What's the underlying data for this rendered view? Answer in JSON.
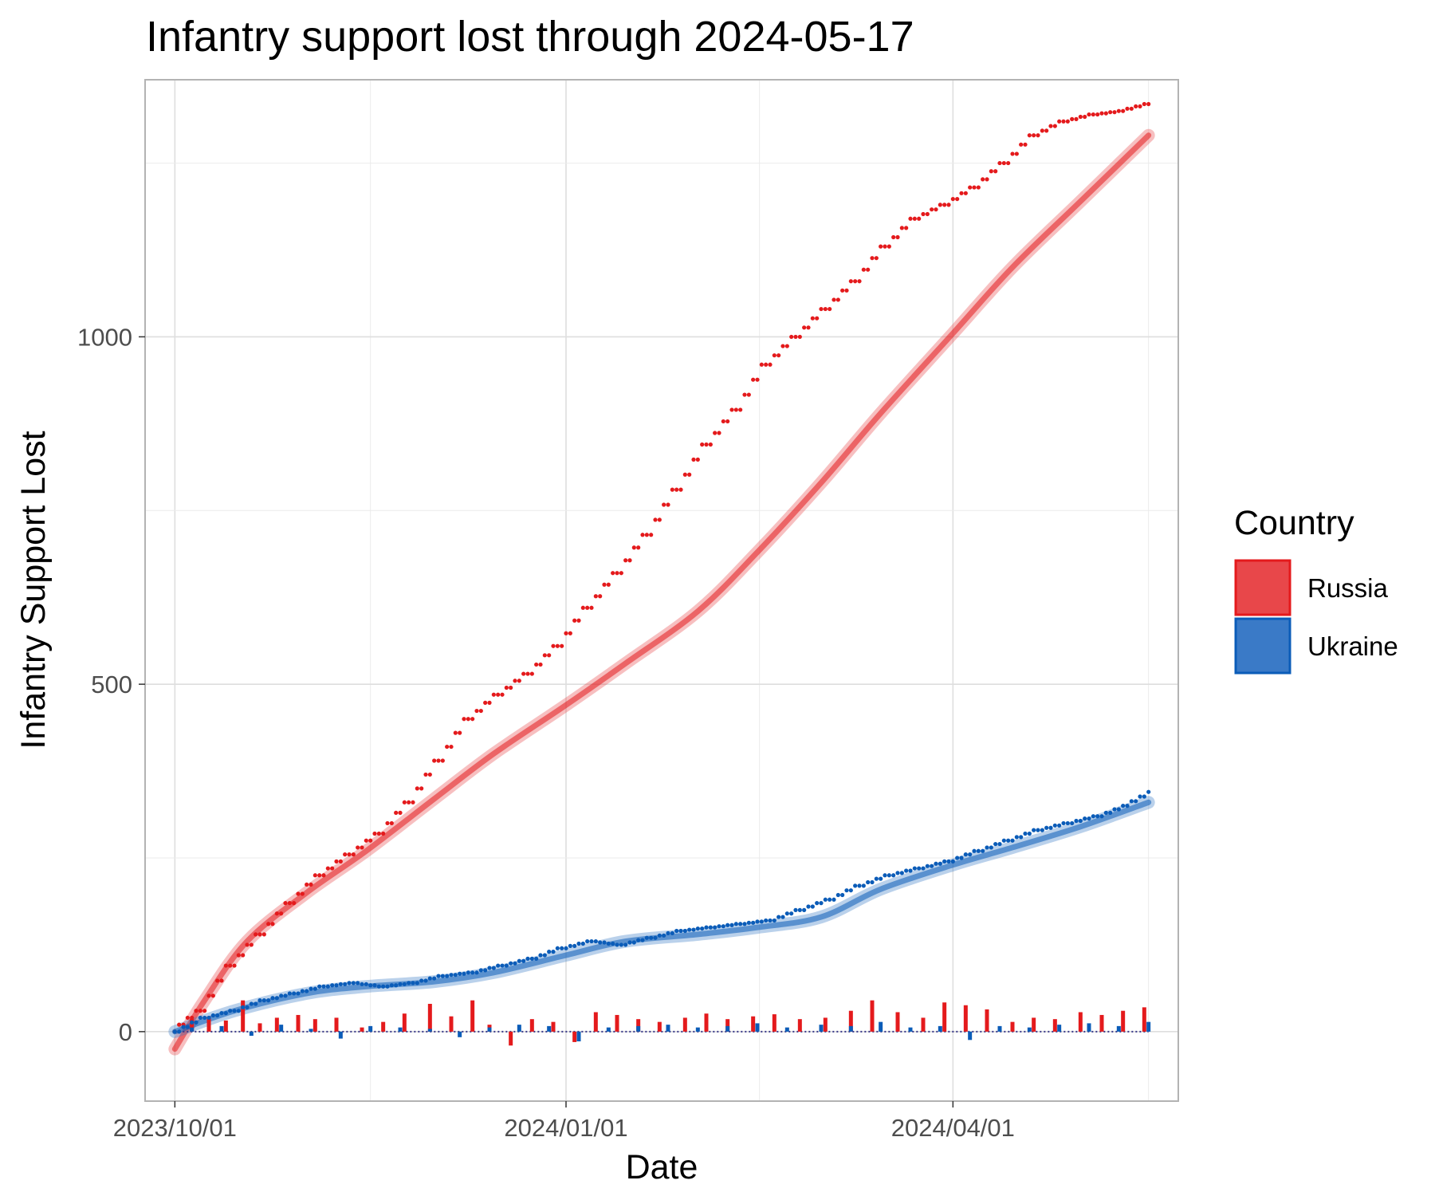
{
  "chart_data": {
    "type": "line",
    "title": "Infantry support lost through 2024-05-17",
    "xlabel": "Date",
    "ylabel": "Infantry Support Lost",
    "x_ticks": [
      "2023/10/01",
      "2024/01/01",
      "2024/04/01"
    ],
    "y_ticks": [
      0,
      500,
      1000
    ],
    "xlim": [
      "2023-09-24",
      "2024-05-24"
    ],
    "ylim": [
      -100,
      1370
    ],
    "grid": true,
    "legend": {
      "title": "Country",
      "placement": "right"
    },
    "colors": {
      "Russia": "#e41a1c",
      "Ukraine": "#0b5cb8",
      "Russia_fill": "#e8474a",
      "Ukraine_fill": "#3a7ac7"
    },
    "series": [
      {
        "name": "Russia",
        "type": "cumulative_points",
        "x": [
          "2023-10-01",
          "2023-10-07",
          "2023-10-14",
          "2023-10-21",
          "2023-10-28",
          "2023-11-04",
          "2023-11-11",
          "2023-11-18",
          "2023-11-25",
          "2023-12-02",
          "2023-12-09",
          "2023-12-16",
          "2023-12-23",
          "2023-12-30",
          "2024-01-06",
          "2024-01-13",
          "2024-01-20",
          "2024-01-27",
          "2024-02-03",
          "2024-02-10",
          "2024-02-17",
          "2024-02-24",
          "2024-03-02",
          "2024-03-09",
          "2024-03-16",
          "2024-03-23",
          "2024-03-30",
          "2024-04-06",
          "2024-04-13",
          "2024-04-20",
          "2024-04-27",
          "2024-05-04",
          "2024-05-11",
          "2024-05-17"
        ],
        "values": [
          0,
          30,
          95,
          140,
          185,
          225,
          255,
          285,
          330,
          390,
          450,
          485,
          515,
          555,
          610,
          660,
          715,
          780,
          845,
          895,
          960,
          1000,
          1040,
          1080,
          1130,
          1170,
          1190,
          1215,
          1250,
          1290,
          1310,
          1320,
          1325,
          1335
        ]
      },
      {
        "name": "Russia",
        "type": "smooth",
        "x": [
          "2023-10-01",
          "2023-10-08",
          "2023-10-18",
          "2023-11-01",
          "2023-11-15",
          "2023-12-01",
          "2023-12-15",
          "2024-01-01",
          "2024-01-15",
          "2024-02-01",
          "2024-02-15",
          "2024-03-01",
          "2024-03-15",
          "2024-04-01",
          "2024-04-15",
          "2024-05-01",
          "2024-05-17"
        ],
        "values": [
          -25,
          45,
          130,
          200,
          260,
          335,
          400,
          470,
          530,
          605,
          690,
          790,
          890,
          1005,
          1100,
          1195,
          1290
        ]
      },
      {
        "name": "Ukraine",
        "type": "cumulative_points",
        "x": [
          "2023-10-01",
          "2023-10-08",
          "2023-10-15",
          "2023-10-22",
          "2023-10-29",
          "2023-11-05",
          "2023-11-12",
          "2023-11-19",
          "2023-11-26",
          "2023-12-03",
          "2023-12-10",
          "2023-12-17",
          "2023-12-24",
          "2023-12-31",
          "2024-01-07",
          "2024-01-14",
          "2024-01-21",
          "2024-01-28",
          "2024-02-04",
          "2024-02-11",
          "2024-02-18",
          "2024-02-25",
          "2024-03-03",
          "2024-03-10",
          "2024-03-17",
          "2024-03-24",
          "2024-03-31",
          "2024-04-07",
          "2024-04-14",
          "2024-04-21",
          "2024-04-28",
          "2024-05-05",
          "2024-05-12",
          "2024-05-17"
        ],
        "values": [
          0,
          20,
          30,
          45,
          55,
          65,
          70,
          65,
          70,
          80,
          85,
          95,
          105,
          120,
          130,
          125,
          135,
          145,
          150,
          155,
          160,
          175,
          190,
          210,
          225,
          235,
          245,
          260,
          275,
          290,
          300,
          310,
          325,
          345
        ]
      },
      {
        "name": "Ukraine",
        "type": "smooth",
        "x": [
          "2023-10-01",
          "2023-10-15",
          "2023-11-01",
          "2023-11-15",
          "2023-12-01",
          "2023-12-15",
          "2024-01-01",
          "2024-01-15",
          "2024-02-01",
          "2024-02-15",
          "2024-03-01",
          "2024-03-15",
          "2024-04-01",
          "2024-04-15",
          "2024-05-01",
          "2024-05-17"
        ],
        "values": [
          0,
          30,
          55,
          65,
          72,
          85,
          110,
          130,
          140,
          150,
          165,
          205,
          240,
          265,
          295,
          330
        ]
      },
      {
        "name": "Russia",
        "type": "daily",
        "x": [
          "2023-10-05",
          "2023-10-09",
          "2023-10-13",
          "2023-10-17",
          "2023-10-21",
          "2023-10-25",
          "2023-10-30",
          "2023-11-03",
          "2023-11-08",
          "2023-11-14",
          "2023-11-19",
          "2023-11-24",
          "2023-11-30",
          "2023-12-05",
          "2023-12-10",
          "2023-12-14",
          "2023-12-19",
          "2023-12-24",
          "2023-12-29",
          "2024-01-03",
          "2024-01-08",
          "2024-01-13",
          "2024-01-18",
          "2024-01-23",
          "2024-01-29",
          "2024-02-03",
          "2024-02-08",
          "2024-02-14",
          "2024-02-19",
          "2024-02-25",
          "2024-03-02",
          "2024-03-08",
          "2024-03-13",
          "2024-03-19",
          "2024-03-25",
          "2024-03-30",
          "2024-04-04",
          "2024-04-09",
          "2024-04-15",
          "2024-04-20",
          "2024-04-25",
          "2024-05-01",
          "2024-05-06",
          "2024-05-11",
          "2024-05-16"
        ],
        "values": [
          18,
          22,
          16,
          45,
          12,
          20,
          24,
          18,
          20,
          6,
          14,
          26,
          40,
          22,
          45,
          10,
          -20,
          18,
          14,
          -15,
          28,
          24,
          18,
          14,
          20,
          26,
          18,
          22,
          25,
          18,
          20,
          30,
          45,
          28,
          20,
          42,
          38,
          32,
          14,
          20,
          18,
          28,
          24,
          30,
          35
        ]
      },
      {
        "name": "Ukraine",
        "type": "daily",
        "x": [
          "2023-10-05",
          "2023-10-12",
          "2023-10-19",
          "2023-10-26",
          "2023-11-02",
          "2023-11-09",
          "2023-11-16",
          "2023-11-23",
          "2023-11-30",
          "2023-12-07",
          "2023-12-14",
          "2023-12-21",
          "2023-12-28",
          "2024-01-04",
          "2024-01-11",
          "2024-01-18",
          "2024-01-25",
          "2024-02-01",
          "2024-02-08",
          "2024-02-15",
          "2024-02-22",
          "2024-03-01",
          "2024-03-08",
          "2024-03-15",
          "2024-03-22",
          "2024-03-29",
          "2024-04-05",
          "2024-04-12",
          "2024-04-19",
          "2024-04-26",
          "2024-05-03",
          "2024-05-10",
          "2024-05-17"
        ],
        "values": [
          6,
          8,
          -6,
          10,
          4,
          -10,
          8,
          6,
          4,
          -8,
          6,
          10,
          8,
          -14,
          6,
          8,
          10,
          6,
          8,
          12,
          6,
          10,
          8,
          14,
          6,
          8,
          -12,
          8,
          6,
          10,
          12,
          8,
          14
        ]
      }
    ]
  }
}
